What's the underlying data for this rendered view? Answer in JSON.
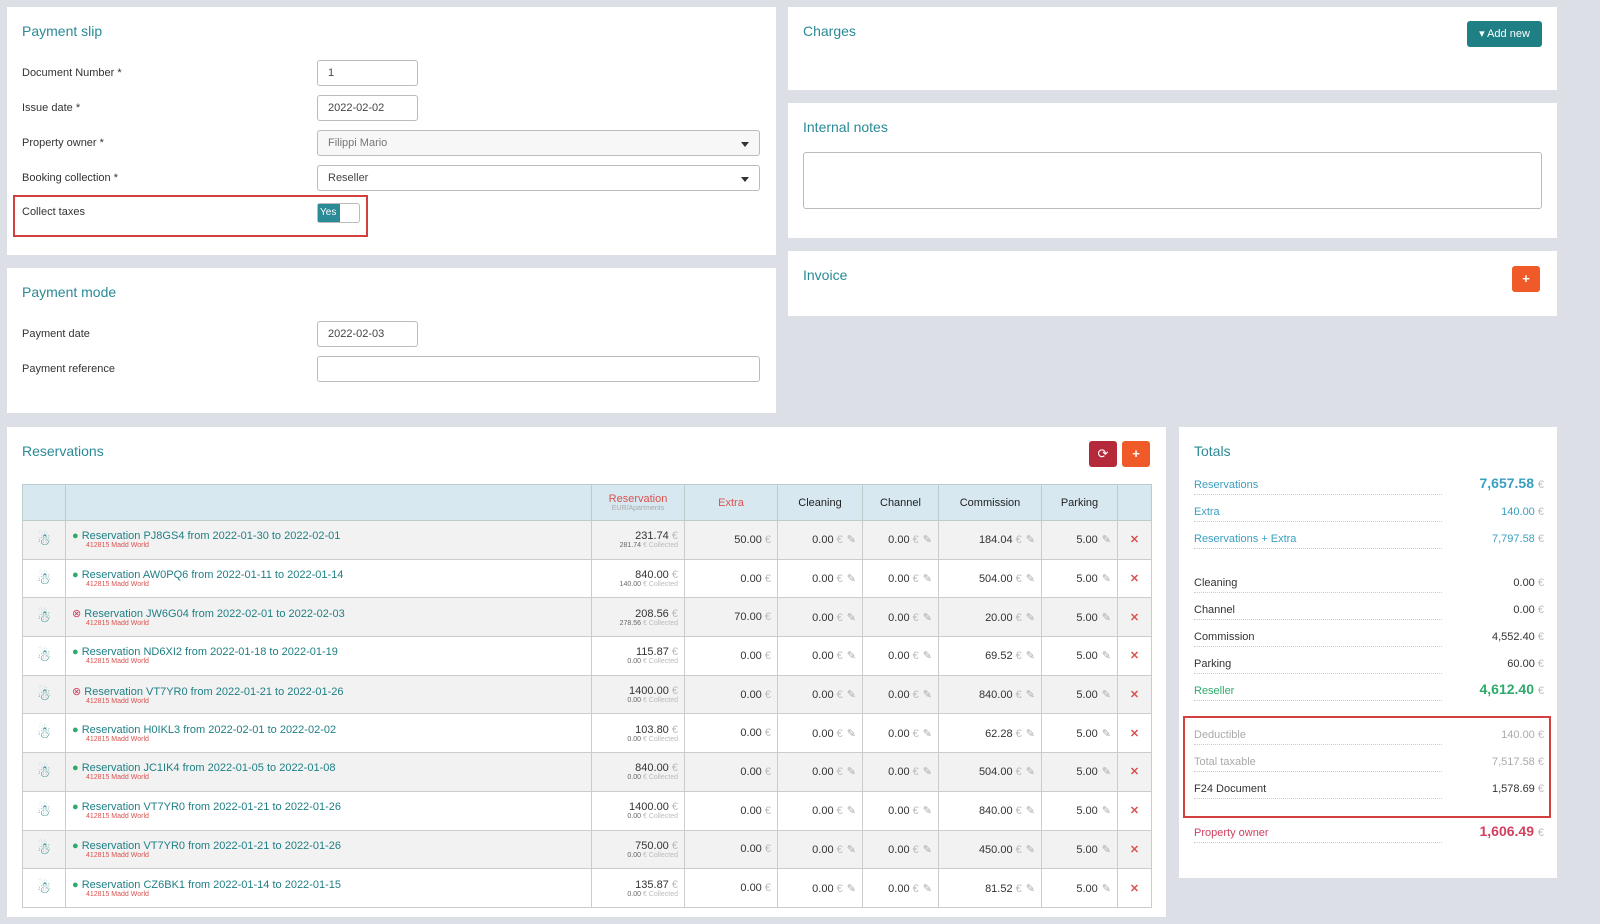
{
  "payment_slip": {
    "title": "Payment slip",
    "document_number_label": "Document Number *",
    "document_number": "1",
    "issue_date_label": "Issue date *",
    "issue_date": "2022-02-02",
    "property_owner_label": "Property owner *",
    "property_owner": "Filippi Mario",
    "booking_collection_label": "Booking collection *",
    "booking_collection": "Reseller",
    "collect_taxes_label": "Collect taxes",
    "collect_taxes": "Yes"
  },
  "payment_mode": {
    "title": "Payment mode",
    "payment_date_label": "Payment date",
    "payment_date": "2022-02-03",
    "payment_reference_label": "Payment reference",
    "payment_reference": ""
  },
  "charges": {
    "title": "Charges",
    "add_new": "Add new"
  },
  "internal_notes": {
    "title": "Internal notes",
    "value": ""
  },
  "invoice": {
    "title": "Invoice",
    "add": "+"
  },
  "reservations": {
    "title": "Reservations",
    "refresh": "⟳",
    "add": "+",
    "columns": {
      "reservation": "Reservation",
      "reservation_sub": "EUR/Apartments",
      "extra": "Extra",
      "cleaning": "Cleaning",
      "channel": "Channel",
      "commission": "Commission",
      "parking": "Parking"
    },
    "currency": "€",
    "collected": "€ Collected",
    "rows": [
      {
        "status": "ok",
        "title": "Reservation PJ8GS4 from 2022-01-30 to 2022-02-01",
        "sub": "412815 Madd World",
        "amount": "231.74",
        "collected": "281.74",
        "extra": "50.00",
        "cleaning": "0.00",
        "channel": "0.00",
        "commission": "184.04",
        "parking": "5.00"
      },
      {
        "status": "ok",
        "title": "Reservation AW0PQ6 from 2022-01-11 to 2022-01-14",
        "sub": "412815 Madd World",
        "amount": "840.00",
        "collected": "140.00",
        "extra": "0.00",
        "cleaning": "0.00",
        "channel": "0.00",
        "commission": "504.00",
        "parking": "5.00"
      },
      {
        "status": "ko",
        "title": "Reservation JW6G04 from 2022-02-01 to 2022-02-03",
        "sub": "412815 Madd World",
        "amount": "208.56",
        "collected": "278.56",
        "extra": "70.00",
        "cleaning": "0.00",
        "channel": "0.00",
        "commission": "20.00",
        "parking": "5.00"
      },
      {
        "status": "ok",
        "title": "Reservation ND6XI2 from 2022-01-18 to 2022-01-19",
        "sub": "412815 Madd World",
        "amount": "115.87",
        "collected": "0.00",
        "extra": "0.00",
        "cleaning": "0.00",
        "channel": "0.00",
        "commission": "69.52",
        "parking": "5.00"
      },
      {
        "status": "ko",
        "title": "Reservation VT7YR0 from 2022-01-21 to 2022-01-26",
        "sub": "412815 Madd World",
        "amount": "1400.00",
        "collected": "0.00",
        "extra": "0.00",
        "cleaning": "0.00",
        "channel": "0.00",
        "commission": "840.00",
        "parking": "5.00"
      },
      {
        "status": "ok",
        "title": "Reservation H0IKL3 from 2022-02-01 to 2022-02-02",
        "sub": "412815 Madd World",
        "amount": "103.80",
        "collected": "0.00",
        "extra": "0.00",
        "cleaning": "0.00",
        "channel": "0.00",
        "commission": "62.28",
        "parking": "5.00"
      },
      {
        "status": "ok",
        "title": "Reservation JC1IK4 from 2022-01-05 to 2022-01-08",
        "sub": "412815 Madd World",
        "amount": "840.00",
        "collected": "0.00",
        "extra": "0.00",
        "cleaning": "0.00",
        "channel": "0.00",
        "commission": "504.00",
        "parking": "5.00"
      },
      {
        "status": "ok",
        "title": "Reservation VT7YR0 from 2022-01-21 to 2022-01-26",
        "sub": "412815 Madd World",
        "amount": "1400.00",
        "collected": "0.00",
        "extra": "0.00",
        "cleaning": "0.00",
        "channel": "0.00",
        "commission": "840.00",
        "parking": "5.00"
      },
      {
        "status": "ok",
        "title": "Reservation VT7YR0 from 2022-01-21 to 2022-01-26",
        "sub": "412815 Madd World",
        "amount": "750.00",
        "collected": "0.00",
        "extra": "0.00",
        "cleaning": "0.00",
        "channel": "0.00",
        "commission": "450.00",
        "parking": "5.00"
      },
      {
        "status": "ok",
        "title": "Reservation CZ6BK1 from 2022-01-14 to 2022-01-15",
        "sub": "412815 Madd World",
        "amount": "135.87",
        "collected": "0.00",
        "extra": "0.00",
        "cleaning": "0.00",
        "channel": "0.00",
        "commission": "81.52",
        "parking": "5.00"
      }
    ]
  },
  "totals": {
    "title": "Totals",
    "rows": [
      {
        "label": "Reservations",
        "value": "7,657.58",
        "color": "#3a9fc0",
        "big": true
      },
      {
        "label": "Extra",
        "value": "140.00",
        "color": "#3a9fc0"
      },
      {
        "label": "Reservations + Extra",
        "value": "7,797.58",
        "color": "#3a9fc0"
      },
      {
        "label": "Cleaning",
        "value": "0.00",
        "color": "#333"
      },
      {
        "label": "Channel",
        "value": "0.00",
        "color": "#333"
      },
      {
        "label": "Commission",
        "value": "4,552.40",
        "color": "#333"
      },
      {
        "label": "Parking",
        "value": "60.00",
        "color": "#333"
      },
      {
        "label": "Reseller",
        "value": "4,612.40",
        "color": "#2eab6a",
        "big": true
      },
      {
        "label": "Deductible",
        "value": "140.00",
        "color": "#aaa"
      },
      {
        "label": "Total taxable",
        "value": "7,517.58",
        "color": "#aaa"
      },
      {
        "label": "F24 Document",
        "value": "1,578.69",
        "color": "#333"
      },
      {
        "label": "Property owner",
        "value": "1,606.49",
        "color": "#d24060",
        "big": true
      }
    ]
  }
}
